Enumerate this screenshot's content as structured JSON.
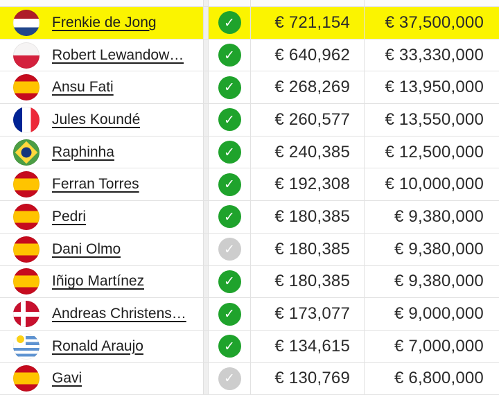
{
  "table": {
    "rows": [
      {
        "name": "Frenkie de Jong",
        "flag": "netherlands",
        "verified": true,
        "weekly": "€ 721,154",
        "yearly": "€ 37,500,000",
        "highlighted": true
      },
      {
        "name": "Robert Lewandow…",
        "flag": "poland",
        "verified": true,
        "weekly": "€ 640,962",
        "yearly": "€ 33,330,000",
        "highlighted": false
      },
      {
        "name": "Ansu Fati",
        "flag": "spain",
        "verified": true,
        "weekly": "€ 268,269",
        "yearly": "€ 13,950,000",
        "highlighted": false
      },
      {
        "name": "Jules Koundé",
        "flag": "france",
        "verified": true,
        "weekly": "€ 260,577",
        "yearly": "€ 13,550,000",
        "highlighted": false
      },
      {
        "name": "Raphinha",
        "flag": "brazil",
        "verified": true,
        "weekly": "€ 240,385",
        "yearly": "€ 12,500,000",
        "highlighted": false
      },
      {
        "name": "Ferran Torres",
        "flag": "spain",
        "verified": true,
        "weekly": "€ 192,308",
        "yearly": "€ 10,000,000",
        "highlighted": false
      },
      {
        "name": "Pedri",
        "flag": "spain",
        "verified": true,
        "weekly": "€ 180,385",
        "yearly": "€ 9,380,000",
        "highlighted": false
      },
      {
        "name": "Dani Olmo",
        "flag": "spain",
        "verified": false,
        "weekly": "€ 180,385",
        "yearly": "€ 9,380,000",
        "highlighted": false
      },
      {
        "name": "Iñigo Martínez",
        "flag": "spain",
        "verified": true,
        "weekly": "€ 180,385",
        "yearly": "€ 9,380,000",
        "highlighted": false
      },
      {
        "name": "Andreas Christens…",
        "flag": "denmark",
        "verified": true,
        "weekly": "€ 173,077",
        "yearly": "€ 9,000,000",
        "highlighted": false
      },
      {
        "name": "Ronald Araujo",
        "flag": "uruguay",
        "verified": true,
        "weekly": "€ 134,615",
        "yearly": "€ 7,000,000",
        "highlighted": false
      },
      {
        "name": "Gavi",
        "flag": "spain",
        "verified": false,
        "weekly": "€ 130,769",
        "yearly": "€ 6,800,000",
        "highlighted": false
      }
    ]
  },
  "icons": {
    "check_glyph": "✓"
  },
  "colors": {
    "highlight_yellow": "#FBF400",
    "verified_green": "#1FA32C",
    "unverified_gray": "#CDCDCD",
    "separator_gray": "#E2E2E2"
  }
}
